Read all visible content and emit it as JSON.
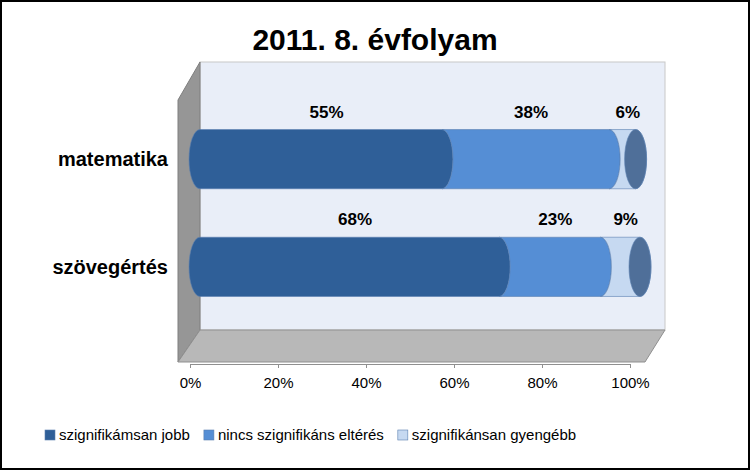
{
  "chart_data": {
    "type": "bar",
    "orientation": "horizontal",
    "stacked": true,
    "data_labels": true,
    "legend": "bottom",
    "title": "2011. 8. évfolyam",
    "categories": [
      "matematika",
      "szövegértés"
    ],
    "series": [
      {
        "name": "szignifikámsan jobb",
        "color": "#2f5f98",
        "values": [
          55,
          68
        ],
        "value_labels": [
          "55%",
          "68%"
        ]
      },
      {
        "name": "nincs szignifikáns eltérés",
        "color": "#558ed5",
        "values": [
          38,
          23
        ],
        "value_labels": [
          "38%",
          "23%"
        ]
      },
      {
        "name": "szignifikánsan gyengébb",
        "color": "#c6d9f1",
        "values": [
          6,
          9
        ],
        "value_labels": [
          "6%",
          "9%"
        ]
      }
    ],
    "xlim": [
      0,
      100
    ],
    "xticks": [
      {
        "value": 0,
        "label": "0%"
      },
      {
        "value": 20,
        "label": "20%"
      },
      {
        "value": 40,
        "label": "40%"
      },
      {
        "value": 60,
        "label": "60%"
      },
      {
        "value": 80,
        "label": "80%"
      },
      {
        "value": 100,
        "label": "100%"
      }
    ],
    "grid": false
  }
}
